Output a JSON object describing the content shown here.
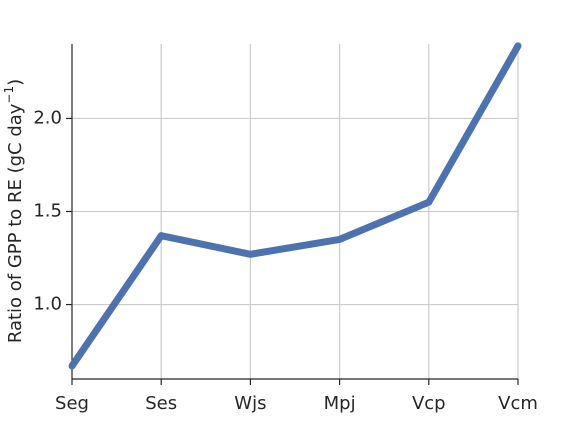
{
  "chart_data": {
    "type": "line",
    "categories": [
      "Seg",
      "Ses",
      "Wjs",
      "Mpj",
      "Vcp",
      "Vcm"
    ],
    "series": [
      {
        "values": [
          0.67,
          1.37,
          1.27,
          1.35,
          1.55,
          2.39
        ],
        "color": "#4c72b0"
      }
    ],
    "title": "",
    "xlabel": "",
    "ylabel": {
      "main": "Ratio of GPP to RE (gC day",
      "superscript": "−1",
      "close": ")"
    },
    "ylim": [
      0.6,
      2.4
    ],
    "yticks": [
      1.0,
      1.5,
      2.0
    ],
    "ytick_labels": [
      "1.0",
      "1.5",
      "2.0"
    ],
    "grid": true
  }
}
